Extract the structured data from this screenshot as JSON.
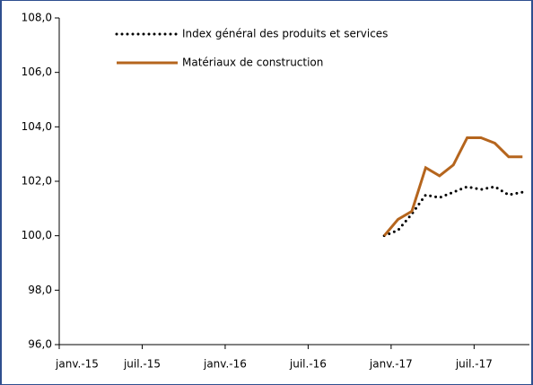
{
  "chart_data": {
    "type": "line",
    "categories": [
      "janv.-15",
      null,
      null,
      null,
      null,
      null,
      "juil.-15",
      null,
      null,
      null,
      null,
      null,
      "janv.-16",
      null,
      null,
      null,
      null,
      null,
      "juil.-16",
      null,
      null,
      null,
      null,
      null,
      "janv.-17",
      null,
      null,
      null,
      null,
      null,
      "juil.-17",
      null,
      null,
      null
    ],
    "series": [
      {
        "name": "Index général des produits et services",
        "color": "#000000",
        "dash": "dotted",
        "values": [
          null,
          null,
          null,
          null,
          null,
          null,
          null,
          null,
          null,
          null,
          null,
          null,
          null,
          null,
          null,
          null,
          null,
          null,
          null,
          null,
          null,
          null,
          null,
          100.0,
          100.2,
          100.8,
          101.5,
          101.4,
          101.6,
          101.8,
          101.7,
          101.8,
          101.5,
          101.6
        ]
      },
      {
        "name": "Matériaux de construction",
        "color": "#b5651d",
        "dash": "solid",
        "values": [
          null,
          null,
          null,
          null,
          null,
          null,
          null,
          null,
          null,
          null,
          null,
          null,
          null,
          null,
          null,
          null,
          null,
          null,
          null,
          null,
          null,
          null,
          null,
          100.0,
          100.6,
          100.9,
          102.5,
          102.2,
          102.6,
          103.6,
          103.6,
          103.4,
          102.9,
          102.9
        ]
      }
    ],
    "ylim": [
      96,
      108
    ],
    "yticks": [
      {
        "value": 96,
        "label": "96,0"
      },
      {
        "value": 98,
        "label": "98,0"
      },
      {
        "value": 100,
        "label": "100,0"
      },
      {
        "value": 102,
        "label": "102,0"
      },
      {
        "value": 104,
        "label": "104,0"
      },
      {
        "value": 106,
        "label": "106,0"
      },
      {
        "value": 108,
        "label": "108,0"
      }
    ],
    "legend": "top"
  }
}
